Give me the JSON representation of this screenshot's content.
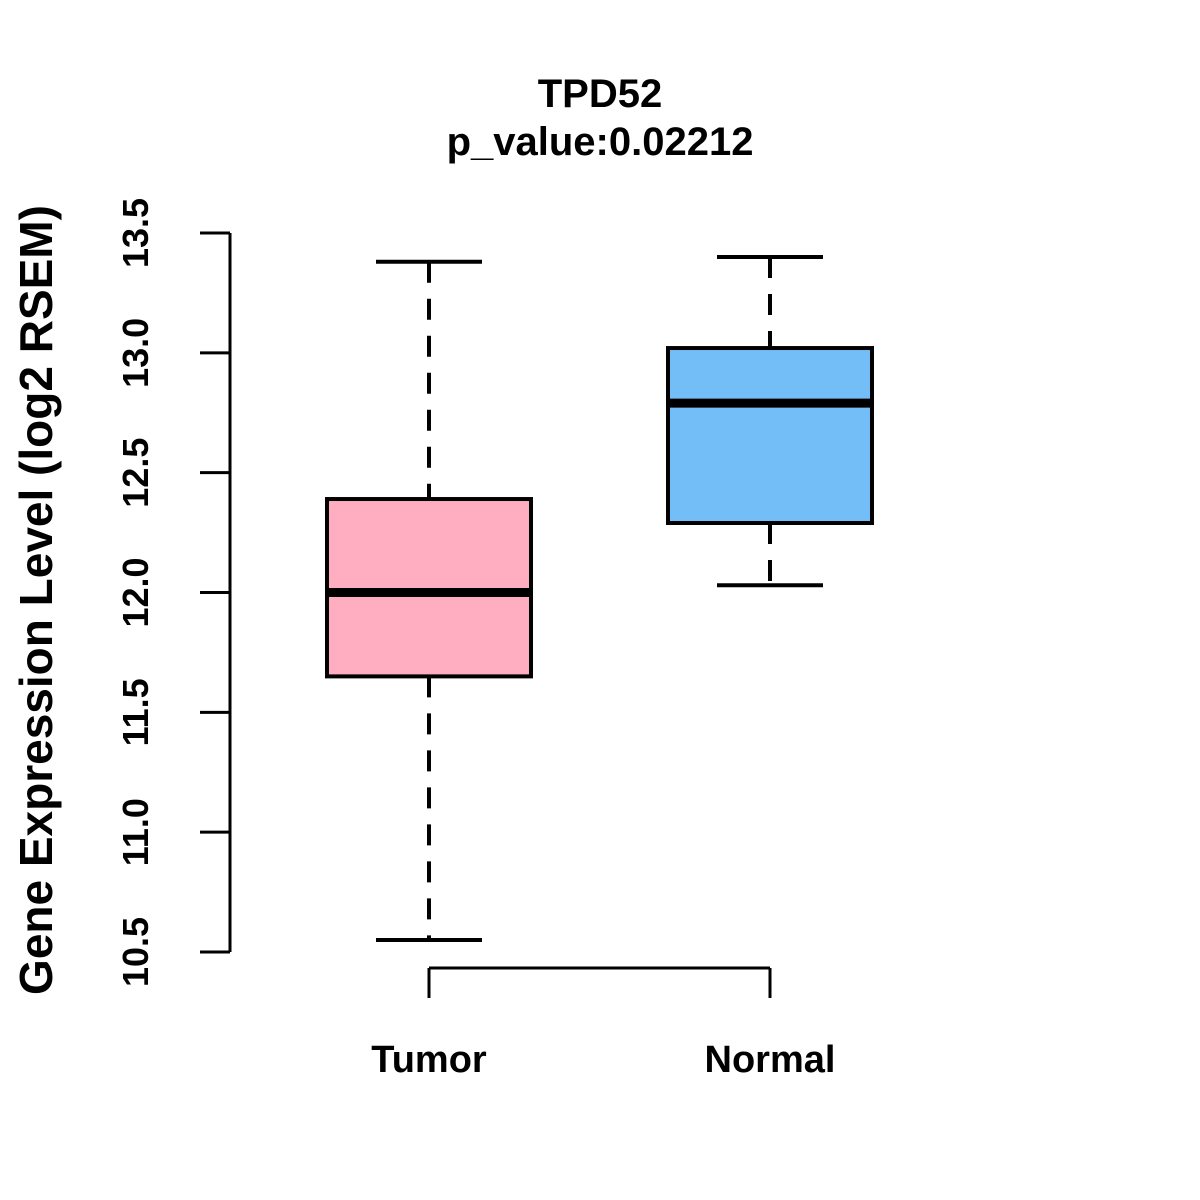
{
  "chart_data": {
    "type": "boxplot",
    "title": "TPD52",
    "subtitle": "p_value:0.02212",
    "ylabel": "Gene Expression Level (log2 RSEM)",
    "xlabel": "",
    "categories": [
      "Tumor",
      "Normal"
    ],
    "ylim": [
      10.5,
      13.5
    ],
    "y_ticks": [
      10.5,
      11.0,
      11.5,
      12.0,
      12.5,
      13.0,
      13.5
    ],
    "grid": false,
    "legend": "none",
    "series": [
      {
        "name": "Tumor",
        "whisker_low": 10.55,
        "q1": 11.65,
        "median": 12.0,
        "q3": 12.39,
        "whisker_high": 13.38,
        "fill": "#FFAEC1"
      },
      {
        "name": "Normal",
        "whisker_low": 12.03,
        "q1": 12.29,
        "median": 12.79,
        "q3": 13.02,
        "whisker_high": 13.4,
        "fill": "#74BEF8"
      }
    ],
    "colors": {
      "stroke": "#000000",
      "median": "#000000",
      "axis": "#000000",
      "text": "#000000"
    }
  }
}
